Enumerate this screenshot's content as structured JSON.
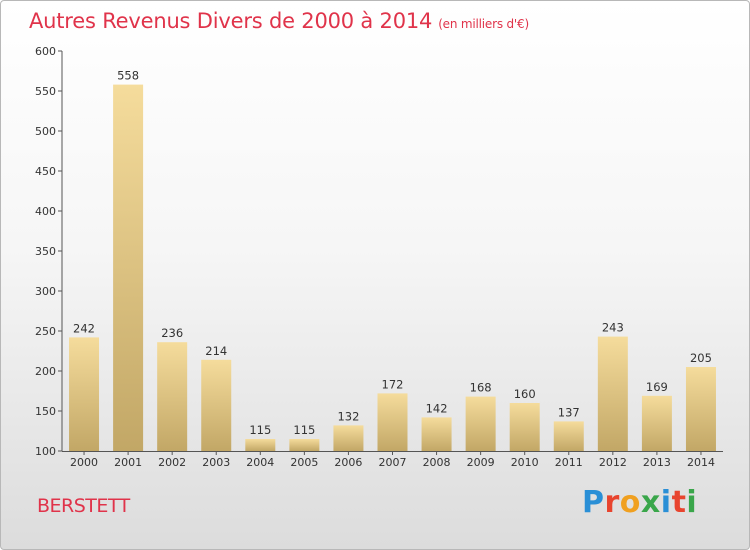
{
  "title": "Autres Revenus Divers de 2000 à 2014",
  "subtitle": "(en milliers d'€)",
  "location": "BERSTETT",
  "brand": "Proxiti",
  "colors": {
    "title": "#e0334a",
    "bar_light": "#f5dc9c",
    "bar_dark": "#c2a766"
  },
  "chart_data": {
    "type": "bar",
    "title": "Autres Revenus Divers de 2000 à 2014",
    "subtitle": "(en milliers d'€)",
    "xlabel": "",
    "ylabel": "",
    "categories": [
      "2000",
      "2001",
      "2002",
      "2003",
      "2004",
      "2005",
      "2006",
      "2007",
      "2008",
      "2009",
      "2010",
      "2011",
      "2012",
      "2013",
      "2014"
    ],
    "values": [
      242,
      558,
      236,
      214,
      115,
      115,
      132,
      172,
      142,
      168,
      160,
      137,
      243,
      169,
      205
    ],
    "ylim": [
      100,
      600
    ],
    "yticks": [
      100,
      150,
      200,
      250,
      300,
      350,
      400,
      450,
      500,
      550,
      600
    ],
    "grid": false,
    "legend": "none"
  }
}
